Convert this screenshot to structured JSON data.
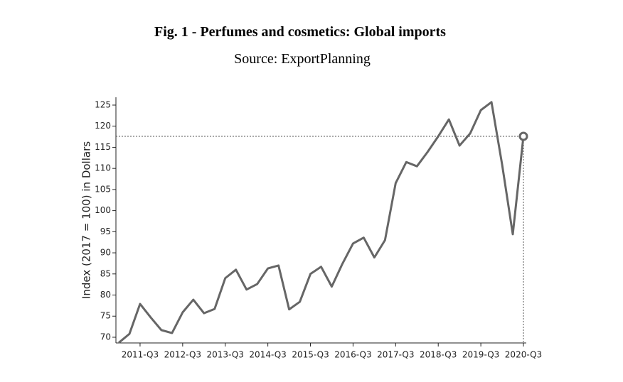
{
  "chart_data": {
    "type": "line",
    "title": "Fig. 1 - Perfumes and cosmetics: Global imports",
    "subtitle": "Source: ExportPlanning",
    "y_label": "Index (2017 = 100) in Dollars",
    "categories": [
      null,
      null,
      "2011-Q3",
      null,
      null,
      null,
      "2012-Q3",
      null,
      null,
      null,
      "2013-Q3",
      null,
      null,
      null,
      "2014-Q3",
      null,
      null,
      null,
      "2015-Q3",
      null,
      null,
      null,
      "2016-Q3",
      null,
      null,
      null,
      "2017-Q3",
      null,
      null,
      null,
      "2018-Q3",
      null,
      null,
      null,
      "2019-Q3",
      null,
      null,
      null,
      "2020-Q3"
    ],
    "series": [
      {
        "name": "Global imports",
        "color": "#666666",
        "values": [
          68.7,
          70.8,
          77.9,
          74.7,
          71.7,
          71.0,
          75.9,
          78.9,
          75.7,
          76.7,
          84.0,
          86.0,
          81.3,
          82.6,
          86.3,
          87.0,
          76.6,
          78.4,
          85.0,
          86.7,
          82.0,
          87.4,
          92.2,
          93.6,
          88.9,
          93.0,
          106.5,
          111.5,
          110.5,
          113.9,
          117.6,
          121.6,
          115.4,
          118.3,
          123.8,
          125.7,
          110.9,
          94.4,
          117.6
        ]
      }
    ],
    "ylim": [
      68.65,
      126.85
    ],
    "yticks": [
      70,
      75,
      80,
      85,
      90,
      95,
      100,
      105,
      110,
      115,
      120,
      125
    ]
  }
}
